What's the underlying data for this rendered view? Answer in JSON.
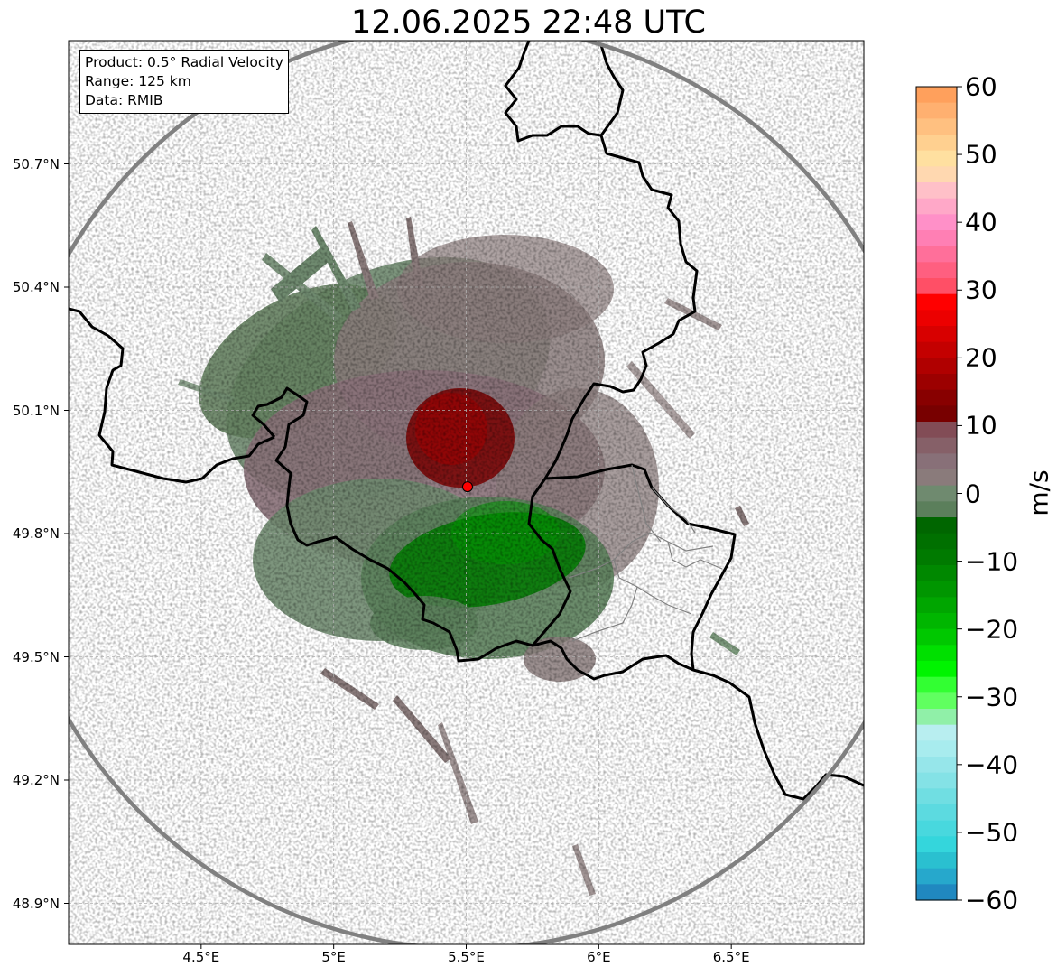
{
  "title": "12.06.2025 22:48 UTC",
  "info_box": {
    "product": "Product: 0.5° Radial Velocity",
    "range": "Range: 125 km",
    "source": "Data: RMIB"
  },
  "map": {
    "lon_range": [
      4.0,
      7.0
    ],
    "lat_range": [
      48.8,
      51.0
    ],
    "lat_ticks": [
      {
        "value": 48.9,
        "label": "48.9°N"
      },
      {
        "value": 49.2,
        "label": "49.2°N"
      },
      {
        "value": 49.5,
        "label": "49.5°N"
      },
      {
        "value": 49.8,
        "label": "49.8°N"
      },
      {
        "value": 50.1,
        "label": "50.1°N"
      },
      {
        "value": 50.4,
        "label": "50.4°N"
      },
      {
        "value": 50.7,
        "label": "50.7°N"
      }
    ],
    "lon_ticks": [
      {
        "value": 4.5,
        "label": "4.5°E"
      },
      {
        "value": 5.0,
        "label": "5°E"
      },
      {
        "value": 5.5,
        "label": "5.5°E"
      },
      {
        "value": 6.0,
        "label": "6°E"
      },
      {
        "value": 6.5,
        "label": "6.5°E"
      }
    ],
    "radar_site": {
      "lon": 5.505,
      "lat": 49.914
    },
    "range_ring_radius_km": 125,
    "colors": {
      "border": "#000000",
      "admin_border": "#808080",
      "range_ring": "#808080",
      "radar_marker": "#ff0000",
      "grid": "#b0b0b0"
    }
  },
  "colorbar": {
    "label": "m/s",
    "min": -60,
    "max": 60,
    "ticks": [
      {
        "value": 60,
        "label": "60"
      },
      {
        "value": 50,
        "label": "50"
      },
      {
        "value": 40,
        "label": "40"
      },
      {
        "value": 30,
        "label": "30"
      },
      {
        "value": 20,
        "label": "20"
      },
      {
        "value": 10,
        "label": "10"
      },
      {
        "value": 0,
        "label": "0"
      },
      {
        "value": -10,
        "label": "−10"
      },
      {
        "value": -20,
        "label": "−20"
      },
      {
        "value": -30,
        "label": "−30"
      },
      {
        "value": -40,
        "label": "−40"
      },
      {
        "value": -50,
        "label": "−50"
      },
      {
        "value": -60,
        "label": "−60"
      }
    ],
    "colors_top_to_bottom": [
      "#ffa05c",
      "#ffb070",
      "#ffc080",
      "#ffd090",
      "#ffe0a0",
      "#ffd8b0",
      "#ffc0c8",
      "#ffa8c8",
      "#ff90c8",
      "#ff7fb4",
      "#ff6f9a",
      "#ff5f80",
      "#ff4f66",
      "#ff0000",
      "#ec0000",
      "#d80000",
      "#c40000",
      "#b00000",
      "#9c0000",
      "#880000",
      "#780000",
      "#824c56",
      "#866068",
      "#887078",
      "#8a7b7b",
      "#6f8a6f",
      "#5b7f5b",
      "#006600",
      "#007000",
      "#007a00",
      "#008800",
      "#009600",
      "#00a600",
      "#00b600",
      "#00c800",
      "#00e000",
      "#00f400",
      "#32ff32",
      "#60ff60",
      "#90f0a8",
      "#b8eef0",
      "#a8ecee",
      "#96e6ea",
      "#84e2e6",
      "#70dee2",
      "#5cdae0",
      "#48d8de",
      "#34d6dc",
      "#2ac0d0",
      "#26a8cc",
      "#2088c0"
    ]
  }
}
